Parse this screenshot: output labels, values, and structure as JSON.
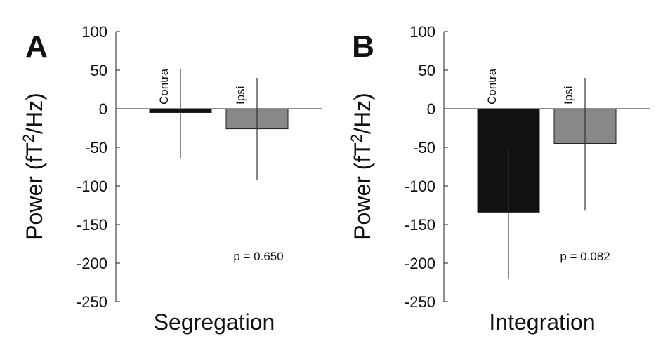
{
  "chart_data": [
    {
      "type": "bar",
      "panel_letter": "A",
      "xlabel": "Segregation",
      "ylabel_main": "Power (fT",
      "ylabel_sup": "2",
      "ylabel_tail": "/Hz)",
      "ylim": [
        -250,
        100
      ],
      "yticks": [
        100,
        50,
        0,
        -50,
        -100,
        -150,
        -200,
        -250
      ],
      "grid": false,
      "zero_line": true,
      "categories": [
        "Contra",
        "Ipsi"
      ],
      "values": [
        -5,
        -26
      ],
      "error_upper": [
        52,
        40
      ],
      "error_lower": [
        -64,
        -92
      ],
      "bar_colors": [
        "#111111",
        "#888888"
      ],
      "annotation": "p = 0.650"
    },
    {
      "type": "bar",
      "panel_letter": "B",
      "xlabel": "Integration",
      "ylabel_main": "Power (fT",
      "ylabel_sup": "2",
      "ylabel_tail": "/Hz)",
      "ylim": [
        -250,
        100
      ],
      "yticks": [
        100,
        50,
        0,
        -50,
        -100,
        -150,
        -200,
        -250
      ],
      "grid": false,
      "zero_line": true,
      "categories": [
        "Contra",
        "Ipsi"
      ],
      "values": [
        -134,
        -45
      ],
      "error_upper": [
        -50,
        40
      ],
      "error_lower": [
        -220,
        -132
      ],
      "bar_colors": [
        "#111111",
        "#888888"
      ],
      "annotation": "p = 0.082"
    }
  ]
}
